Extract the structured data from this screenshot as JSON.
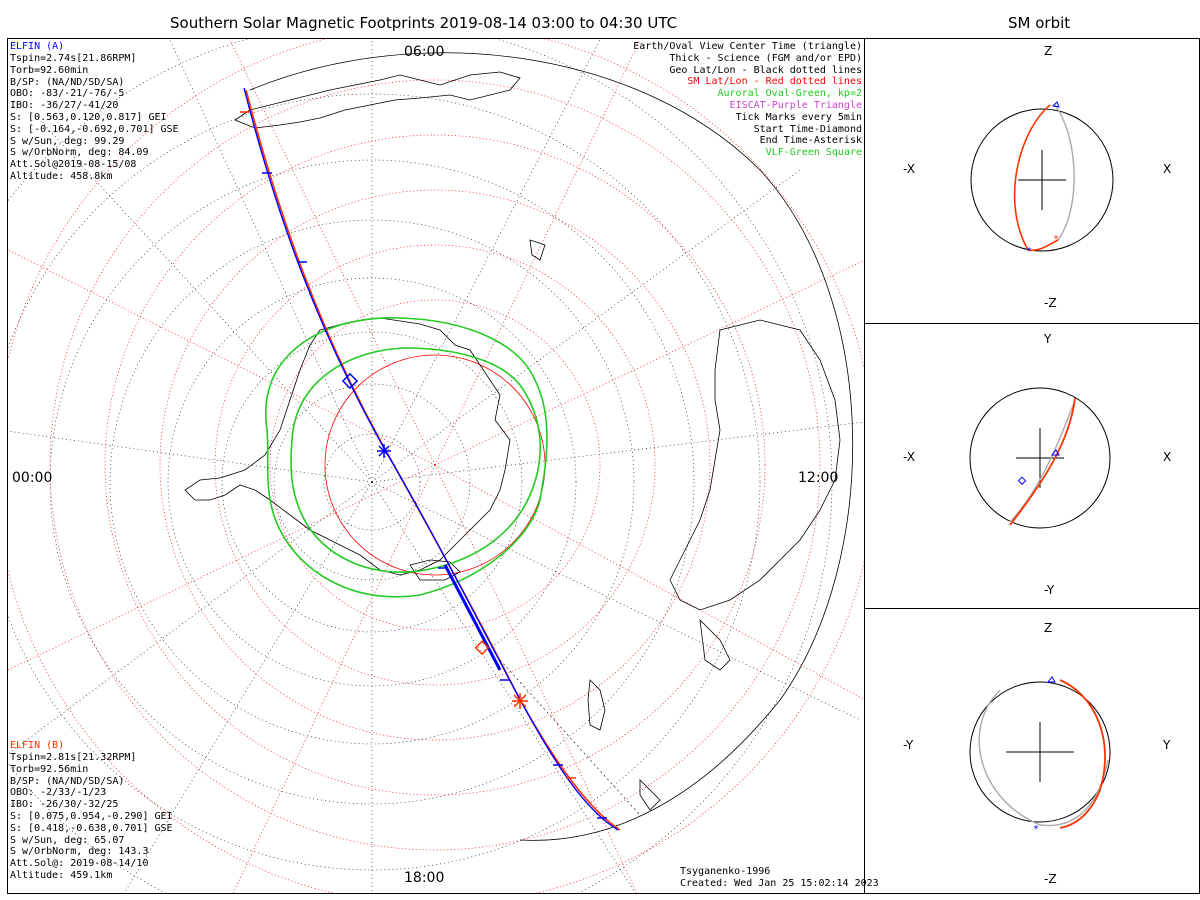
{
  "main": {
    "title": "Southern Solar Magnetic Footprints 2019-08-14 03:00 to 04:30 UTC",
    "clock_labels": {
      "top": "06:00",
      "left": "00:00",
      "right": "12:00",
      "bottom": "18:00"
    },
    "elfin_a": {
      "name": "ELFIN (A)",
      "color": "#0000ff",
      "lines": [
        "Tspin=2.74s[21.86RPM]",
        "Torb=92.60min",
        "B/SP: (NA/ND/SD/SA)",
        "OBO: -83/-21/-76/-5",
        "IBO: -36/27/-41/20",
        "S: [0.563,0.120,0.817] GEI",
        "S: [-0.164,-0.692,0.701] GSE",
        "S w/Sun, deg: 99.29",
        "S w/OrbNorm, deg: 84.09",
        "Att.Sol@2019-08-15/08",
        "Altitude: 458.8km"
      ]
    },
    "elfin_b": {
      "name": "ELFIN (B)",
      "color": "#ff3300",
      "lines": [
        "Tspin=2.81s[21.32RPM]",
        "Torb=92.56min",
        "B/SP: (NA/ND/SD/SA)",
        "OBO: -2/33/-1/23",
        "IBO: -26/30/-32/25",
        "S: [0.075,0.954,-0.290] GEI",
        "S: [0.418,-0.638,0.701] GSE",
        "S w/Sun, deg: 65.07",
        "S w/OrbNorm, deg: 143.3",
        "Att.Sol@: 2019-08-14/10",
        "Altitude: 459.1km"
      ]
    },
    "legend": [
      {
        "text": "Earth/Oval View Center Time (triangle)",
        "color": "#000000"
      },
      {
        "text": "Thick - Science (FGM and/or EPD)",
        "color": "#000000"
      },
      {
        "text": "Geo Lat/Lon - Black dotted lines",
        "color": "#000000"
      },
      {
        "text": "SM Lat/Lon - Red dotted lines",
        "color": "#ff0000"
      },
      {
        "text": "Auroral Oval-Green, kp=2",
        "color": "#22cc22"
      },
      {
        "text": "EISCAT-Purple Triangle",
        "color": "#cc44cc"
      },
      {
        "text": "Tick Marks every 5min",
        "color": "#000000"
      },
      {
        "text": "Start Time-Diamond",
        "color": "#000000"
      },
      {
        "text": "End Time-Asterisk",
        "color": "#000000"
      },
      {
        "text": "VLF-Green Square",
        "color": "#22cc22"
      }
    ],
    "credit": {
      "model": "Tsyganenko-1996",
      "created": "Created: Wed Jan 25 15:02:14 2023"
    }
  },
  "sm_orbit": {
    "title": "SM orbit",
    "panels": [
      {
        "top": "Z",
        "bottom": "-Z",
        "left": "-X",
        "right": "X"
      },
      {
        "top": "Y",
        "bottom": "-Y",
        "left": "-X",
        "right": "X"
      },
      {
        "top": "Z",
        "bottom": "-Z",
        "left": "-Y",
        "right": "Y"
      }
    ]
  },
  "colors": {
    "oval": "#22cc22",
    "sm_grid": "#ff0000",
    "geo_grid": "#000000",
    "orbit_a": "#0000ff",
    "orbit_b": "#ff3300",
    "orbit_gray": "#aaaaaa"
  }
}
